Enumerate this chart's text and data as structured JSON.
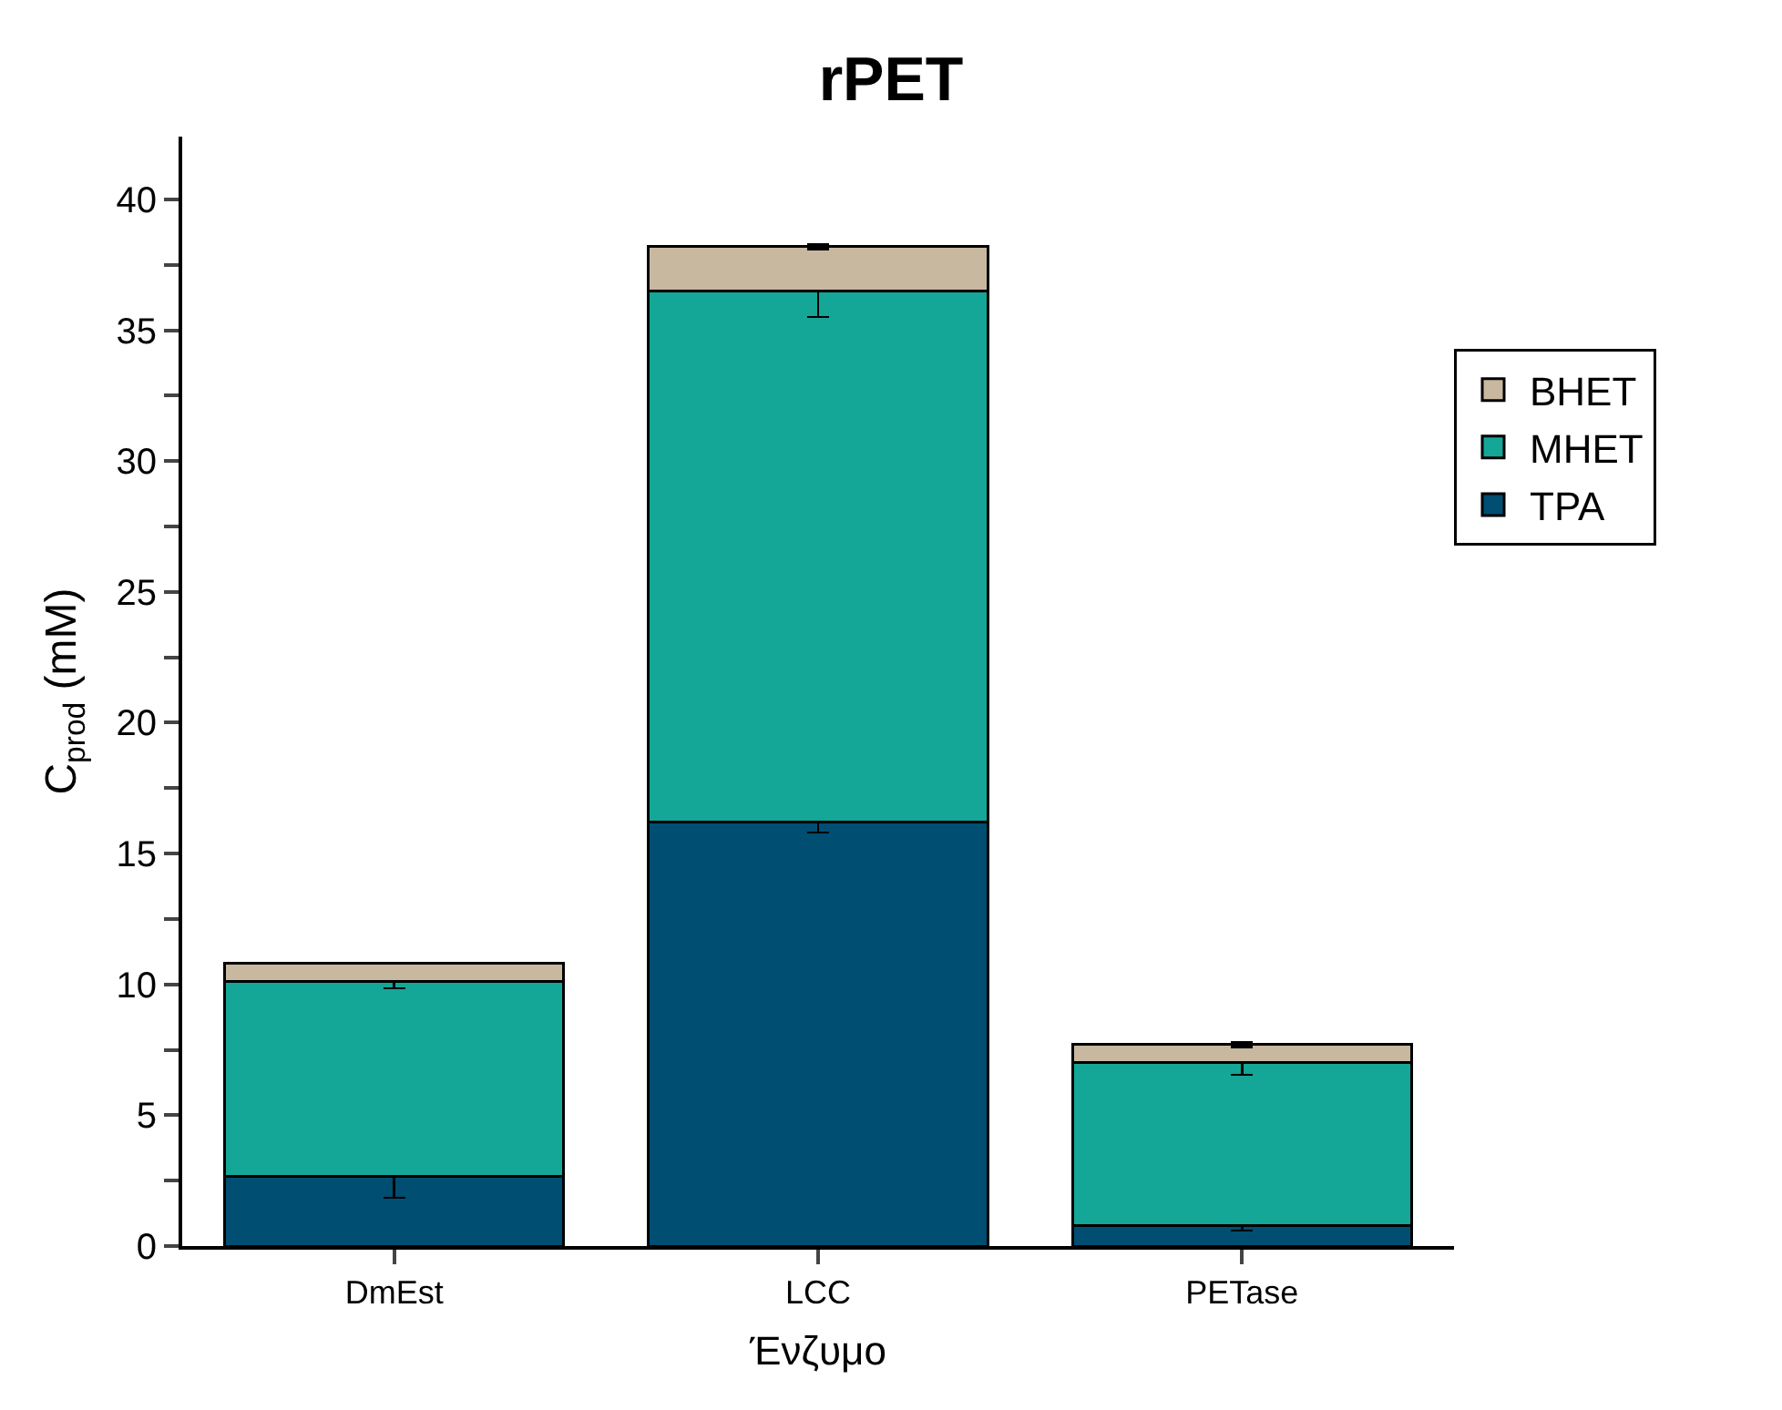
{
  "chart_data": {
    "type": "bar",
    "title": "rPET",
    "xlabel": "Ένζυμο",
    "ylabel": "C$_{prod}$ (mM)",
    "categories": [
      "DmEst",
      "LCC",
      "PETase"
    ],
    "stacked": true,
    "legend": "right",
    "ylim": [
      0,
      42.4
    ],
    "yticks": [
      0,
      {
        "value": 2.5,
        "label": null
      },
      5,
      {
        "value": 7.5,
        "label": null
      },
      10,
      {
        "value": 12.5,
        "label": null
      },
      15,
      {
        "value": 17.5,
        "label": null
      },
      20,
      {
        "value": 22.5,
        "label": null
      },
      25,
      {
        "value": 27.5,
        "label": null
      },
      30,
      {
        "value": 32.5,
        "label": null
      },
      35,
      {
        "value": 37.5,
        "label": null
      },
      40
    ],
    "series": [
      {
        "name": "TPA",
        "color": "#004e72",
        "values": [
          2.65,
          16.2,
          0.8
        ],
        "errors": [
          0.8,
          0.4,
          0.2
        ]
      },
      {
        "name": "MHET",
        "color": "#14a697",
        "values": [
          7.45,
          20.3,
          6.2
        ],
        "errors": [
          0.25,
          1.0,
          0.45
        ]
      },
      {
        "name": "BHET",
        "color": "#c8b8a0",
        "values": [
          0.7,
          1.7,
          0.7
        ],
        "errors": [
          null,
          0.1,
          0.1
        ]
      }
    ]
  }
}
